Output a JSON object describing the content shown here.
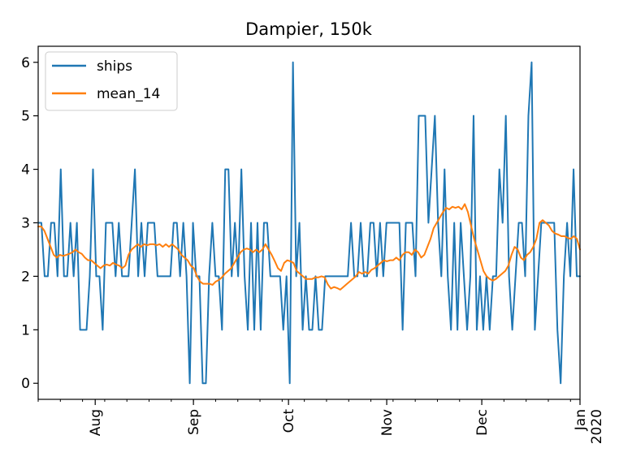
{
  "chart_data": {
    "type": "line",
    "title": "Dampier, 150k",
    "xlabel": "",
    "ylabel": "",
    "x_start": "2019-07-14",
    "x_end": "2020-01-01",
    "ylim": [
      -0.3,
      6.3
    ],
    "yticks": [
      0,
      1,
      2,
      3,
      4,
      5,
      6
    ],
    "xticks": [
      {
        "date": "2019-08-01",
        "label": "Aug"
      },
      {
        "date": "2019-09-01",
        "label": "Sep"
      },
      {
        "date": "2019-10-01",
        "label": "Oct"
      },
      {
        "date": "2019-11-01",
        "label": "Nov"
      },
      {
        "date": "2019-12-01",
        "label": "Dec"
      },
      {
        "date": "2020-01-01",
        "label": "Jan\n2020"
      }
    ],
    "grid": false,
    "legend_position": "top-left",
    "series": [
      {
        "name": "ships",
        "color": "#1f77b4",
        "values": [
          3,
          3,
          2,
          2,
          3,
          3,
          2,
          4,
          2,
          2,
          3,
          2,
          3,
          1,
          1,
          1,
          2,
          4,
          2,
          2,
          1,
          3,
          3,
          3,
          2,
          3,
          2,
          2,
          2,
          3,
          4,
          2,
          3,
          2,
          3,
          3,
          3,
          2,
          2,
          2,
          2,
          2,
          3,
          3,
          2,
          3,
          2,
          0,
          3,
          2,
          2,
          0,
          0,
          2,
          3,
          2,
          2,
          1,
          4,
          4,
          2,
          3,
          2,
          4,
          2,
          1,
          3,
          1,
          3,
          1,
          3,
          3,
          2,
          2,
          2,
          2,
          1,
          2,
          0,
          6,
          2,
          3,
          1,
          2,
          1,
          1,
          2,
          1,
          1,
          2,
          2,
          2,
          2,
          2,
          2,
          2,
          2,
          3,
          2,
          2,
          3,
          2,
          2,
          3,
          3,
          2,
          3,
          2,
          3,
          3,
          3,
          3,
          3,
          1,
          3,
          3,
          3,
          2,
          5,
          5,
          5,
          3,
          4,
          5,
          3,
          2,
          4,
          2,
          1,
          3,
          1,
          3,
          2,
          1,
          2,
          5,
          1,
          2,
          1,
          2,
          1,
          2,
          2,
          4,
          3,
          5,
          2,
          1,
          2,
          3,
          3,
          2,
          5,
          6,
          1,
          2,
          3,
          3,
          3,
          3,
          3,
          1,
          0,
          2,
          3,
          2,
          4,
          2,
          2
        ],
        "values_note_dropped": null
      },
      {
        "name": "mean_14",
        "color": "#ff7f0e",
        "values": [
          2.93,
          2.93,
          2.85,
          2.7,
          2.55,
          2.4,
          2.35,
          2.4,
          2.38,
          2.4,
          2.42,
          2.45,
          2.5,
          2.45,
          2.42,
          2.35,
          2.3,
          2.3,
          2.25,
          2.2,
          2.15,
          2.2,
          2.22,
          2.2,
          2.25,
          2.22,
          2.2,
          2.15,
          2.2,
          2.4,
          2.5,
          2.55,
          2.6,
          2.55,
          2.6,
          2.58,
          2.6,
          2.6,
          2.58,
          2.6,
          2.55,
          2.6,
          2.55,
          2.6,
          2.55,
          2.5,
          2.4,
          2.35,
          2.3,
          2.2,
          2.15,
          2.0,
          1.9,
          1.86,
          1.86,
          1.86,
          1.84,
          1.9,
          1.93,
          1.98,
          2.05,
          2.1,
          2.15,
          2.25,
          2.35,
          2.45,
          2.5,
          2.52,
          2.5,
          2.45,
          2.5,
          2.45,
          2.5,
          2.6,
          2.5,
          2.4,
          2.28,
          2.15,
          2.1,
          2.25,
          2.3,
          2.28,
          2.25,
          2.1,
          2.05,
          2.0,
          1.95,
          1.95,
          1.95,
          1.98,
          1.98,
          2.0,
          1.98,
          1.85,
          1.77,
          1.8,
          1.78,
          1.75,
          1.8,
          1.85,
          1.9,
          1.95,
          2.0,
          2.08,
          2.05,
          2.08,
          2.05,
          2.12,
          2.15,
          2.2,
          2.25,
          2.3,
          2.28,
          2.3,
          2.3,
          2.35,
          2.3,
          2.4,
          2.45,
          2.45,
          2.4,
          2.5,
          2.45,
          2.35,
          2.4,
          2.55,
          2.7,
          2.9,
          3.0,
          3.1,
          3.2,
          3.28,
          3.25,
          3.3,
          3.28,
          3.3,
          3.25,
          3.35,
          3.2,
          2.95,
          2.7,
          2.5,
          2.3,
          2.1,
          2.0,
          1.95,
          1.92,
          1.95,
          2.0,
          2.05,
          2.1,
          2.2,
          2.4,
          2.55,
          2.5,
          2.35,
          2.3,
          2.4,
          2.45,
          2.55,
          2.7,
          3.0,
          3.05,
          3.0,
          2.95,
          2.85,
          2.8,
          2.78,
          2.75,
          2.75,
          2.72,
          2.7,
          2.75,
          2.7,
          2.5
        ]
      }
    ]
  }
}
